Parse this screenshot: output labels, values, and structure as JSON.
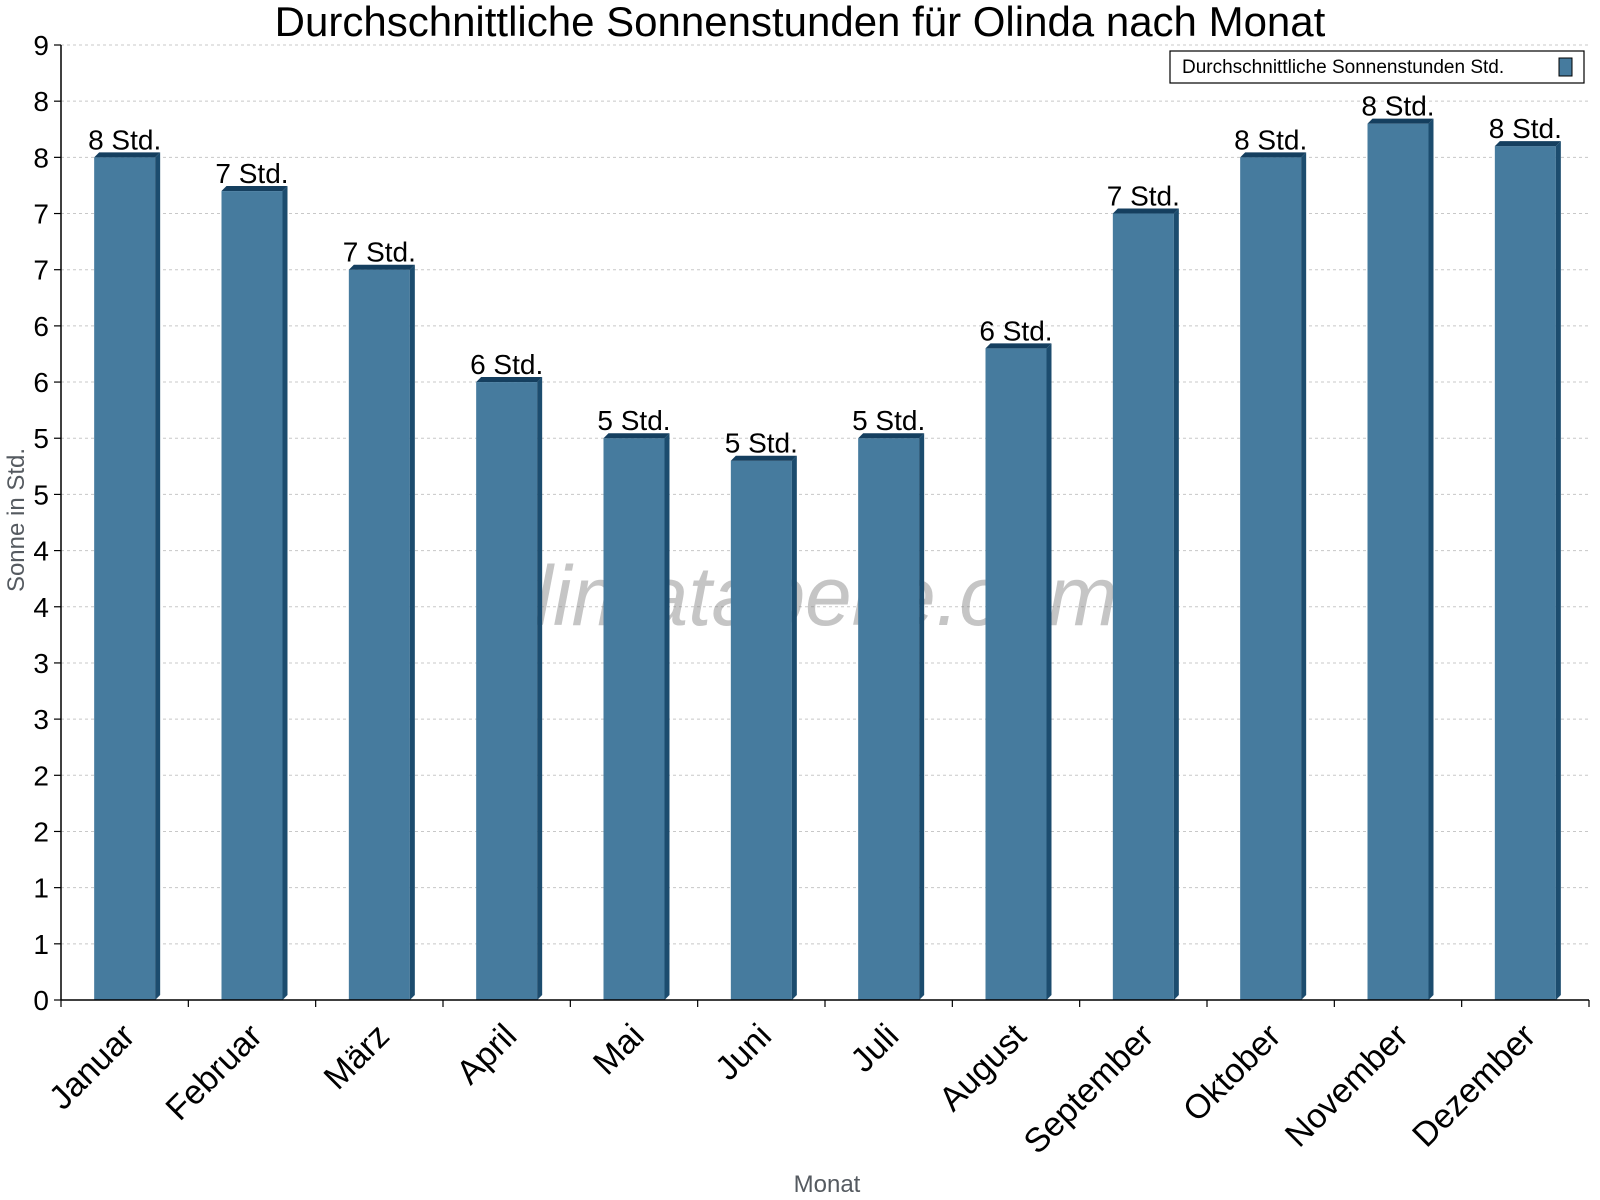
{
  "watermark": "klimatabelle.com",
  "colors": {
    "bar_front": "#467b9e",
    "bar_side": "#1c4c6e",
    "bar_top": "#153f5f",
    "grid": "#c8c8c8",
    "axis": "#000000"
  },
  "chart_data": {
    "type": "bar",
    "title": "Durchschnittliche Sonnenstunden für Olinda nach Monat",
    "xlabel": "Monat",
    "ylabel": "Sonne in Std.",
    "ylim": [
      0,
      8.5
    ],
    "yticks": [
      {
        "value": 0,
        "label": "0"
      },
      {
        "value": 0.5,
        "label": "1"
      },
      {
        "value": 1,
        "label": "1"
      },
      {
        "value": 1.5,
        "label": "2"
      },
      {
        "value": 2,
        "label": "2"
      },
      {
        "value": 2.5,
        "label": "3"
      },
      {
        "value": 3,
        "label": "3"
      },
      {
        "value": 3.5,
        "label": "4"
      },
      {
        "value": 4,
        "label": "4"
      },
      {
        "value": 4.5,
        "label": "5"
      },
      {
        "value": 5,
        "label": "5"
      },
      {
        "value": 5.5,
        "label": "6"
      },
      {
        "value": 6,
        "label": "6"
      },
      {
        "value": 6.5,
        "label": "7"
      },
      {
        "value": 7,
        "label": "7"
      },
      {
        "value": 7.5,
        "label": "8"
      },
      {
        "value": 8,
        "label": "8"
      },
      {
        "value": 8.5,
        "label": "9"
      }
    ],
    "categories": [
      "Januar",
      "Februar",
      "März",
      "April",
      "Mai",
      "Juni",
      "Juli",
      "August",
      "September",
      "Oktober",
      "November",
      "Dezember"
    ],
    "series": [
      {
        "name": "Durchschnittliche Sonnenstunden Std.",
        "values": [
          7.5,
          7.2,
          6.5,
          5.5,
          5.0,
          4.8,
          5.0,
          5.8,
          7.0,
          7.5,
          7.8,
          7.6
        ],
        "labels": [
          "8 Std.",
          "7 Std.",
          "7 Std.",
          "6 Std.",
          "5 Std.",
          "5 Std.",
          "5 Std.",
          "6 Std.",
          "7 Std.",
          "8 Std.",
          "8 Std.",
          "8 Std."
        ]
      }
    ],
    "grid": true,
    "legend_position": "top-right"
  }
}
